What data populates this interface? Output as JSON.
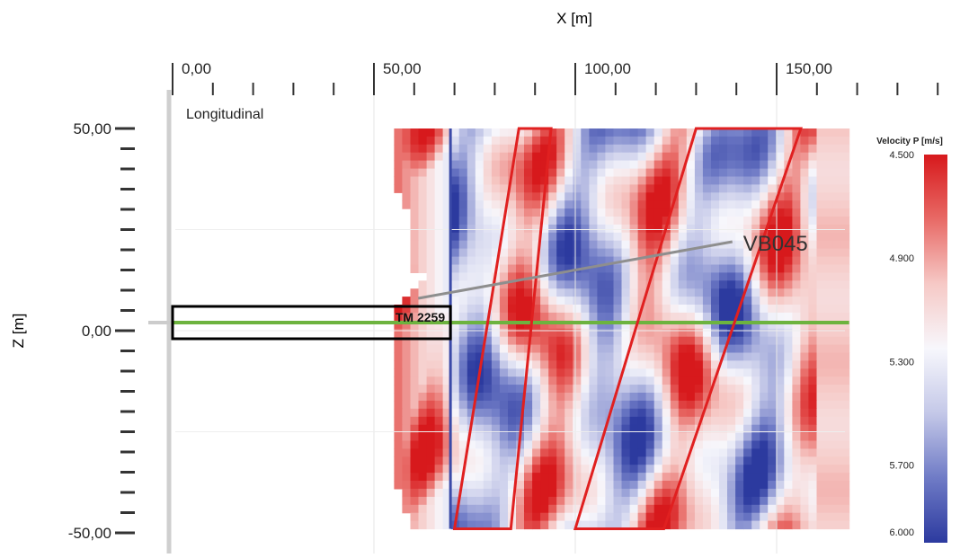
{
  "chart_data": {
    "type": "heatmap",
    "xlabel": "X [m]",
    "ylabel": "Z [m]",
    "panel_label": "Longitudinal",
    "x_ticks": [
      0,
      50,
      100,
      150
    ],
    "x_tick_labels": [
      "0,00",
      "50,00",
      "100,00",
      "150,00"
    ],
    "xlim": [
      -1,
      193
    ],
    "y_ticks": [
      50,
      0,
      -50
    ],
    "y_tick_labels": [
      "50,00",
      "0,00",
      "-50,00"
    ],
    "ylim": [
      -52.5,
      55
    ],
    "grid": true,
    "colorbar": {
      "title": "Velocity P [m/s]",
      "ticks": [
        4500,
        4900,
        5300,
        5700,
        6000
      ],
      "tick_labels": [
        "4.500",
        "4.900",
        "5.300",
        "5.700",
        "6.000"
      ],
      "colors": [
        "#d7191c",
        "#e86a66",
        "#f6c9c6",
        "#f7f7fc",
        "#c4c8e8",
        "#6f7bc6",
        "#2c3a9f"
      ]
    },
    "data_extent": {
      "x": [
        55,
        168
      ],
      "z": [
        -49,
        50
      ]
    },
    "annotations": {
      "marker_box_label": "TM 2259",
      "marker_box_x": [
        0,
        69
      ],
      "marker_box_z": [
        -2,
        6
      ],
      "pointer_label": "VB045",
      "pointer_from": [
        61,
        8
      ],
      "pointer_to": [
        139,
        22
      ]
    },
    "lines": [
      {
        "name": "vertical-reference",
        "color": "#3b4aa8",
        "x": [
          69,
          69
        ],
        "z": [
          50,
          -49
        ]
      },
      {
        "name": "horizontal-reference",
        "color": "#6db33f",
        "x": [
          0,
          168
        ],
        "z": [
          2,
          2
        ]
      }
    ],
    "zones": [
      {
        "name": "zone-1",
        "color": "#e02020",
        "points": [
          [
            94,
            50
          ],
          [
            86,
            50
          ],
          [
            70,
            -49
          ],
          [
            84,
            -49
          ]
        ]
      },
      {
        "name": "zone-2",
        "color": "#e02020",
        "points": [
          [
            156,
            50
          ],
          [
            130,
            50
          ],
          [
            100,
            -49
          ],
          [
            122,
            -49
          ]
        ]
      }
    ],
    "colormap": {
      "nx": 56,
      "nz": 50,
      "x0": 55,
      "x1": 168,
      "z0": 50,
      "z1": -49
    }
  }
}
